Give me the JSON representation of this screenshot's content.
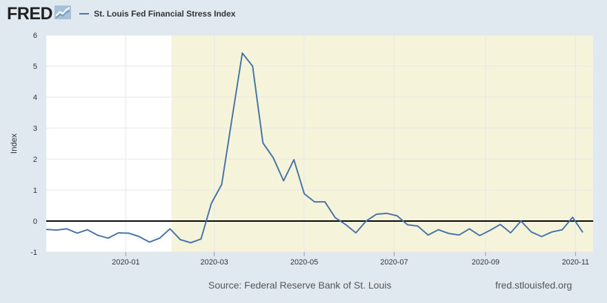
{
  "header": {
    "logo_text": "FRED",
    "logo_icon": "chart-line-icon",
    "legend_label": "St. Louis Fed Financial Stress Index"
  },
  "footer": {
    "source": "Source: Federal Reserve Bank of St. Louis",
    "url": "fred.stlouisfed.org"
  },
  "colors": {
    "background": "#e1e9f0",
    "plot_background": "#ffffff",
    "recession_shade": "#f5f4da",
    "series_line": "#4572a7",
    "zero_line": "#000000",
    "grid": "#e6e6e6"
  },
  "chart_data": {
    "type": "line",
    "title": "",
    "xlabel": "",
    "ylabel": "Index",
    "ylim": [
      -1,
      6
    ],
    "yticks": [
      -1,
      0,
      1,
      2,
      3,
      4,
      5,
      6
    ],
    "xlim": [
      "2019-11-08",
      "2020-11-13"
    ],
    "xticks": [
      {
        "date": "2020-01-01",
        "label": "2020-01"
      },
      {
        "date": "2020-03-01",
        "label": "2020-03"
      },
      {
        "date": "2020-05-01",
        "label": "2020-05"
      },
      {
        "date": "2020-07-01",
        "label": "2020-07"
      },
      {
        "date": "2020-09-01",
        "label": "2020-09"
      },
      {
        "date": "2020-11-01",
        "label": "2020-11"
      }
    ],
    "grid": true,
    "recession": {
      "start": "2020-02-01",
      "end": "2020-11-13"
    },
    "series": [
      {
        "name": "St. Louis Fed Financial Stress Index",
        "points": [
          {
            "x": "2019-11-08",
            "y": -0.27
          },
          {
            "x": "2019-11-15",
            "y": -0.29
          },
          {
            "x": "2019-11-22",
            "y": -0.25
          },
          {
            "x": "2019-11-29",
            "y": -0.39
          },
          {
            "x": "2019-12-06",
            "y": -0.28
          },
          {
            "x": "2019-12-13",
            "y": -0.46
          },
          {
            "x": "2019-12-20",
            "y": -0.55
          },
          {
            "x": "2019-12-27",
            "y": -0.38
          },
          {
            "x": "2020-01-03",
            "y": -0.39
          },
          {
            "x": "2020-01-10",
            "y": -0.5
          },
          {
            "x": "2020-01-17",
            "y": -0.68
          },
          {
            "x": "2020-01-24",
            "y": -0.55
          },
          {
            "x": "2020-01-31",
            "y": -0.25
          },
          {
            "x": "2020-02-07",
            "y": -0.6
          },
          {
            "x": "2020-02-14",
            "y": -0.7
          },
          {
            "x": "2020-02-21",
            "y": -0.58
          },
          {
            "x": "2020-02-28",
            "y": 0.57
          },
          {
            "x": "2020-03-06",
            "y": 1.18
          },
          {
            "x": "2020-03-13",
            "y": 3.3
          },
          {
            "x": "2020-03-20",
            "y": 5.42
          },
          {
            "x": "2020-03-27",
            "y": 5.0
          },
          {
            "x": "2020-04-03",
            "y": 2.52
          },
          {
            "x": "2020-04-10",
            "y": 2.04
          },
          {
            "x": "2020-04-17",
            "y": 1.3
          },
          {
            "x": "2020-04-24",
            "y": 1.98
          },
          {
            "x": "2020-05-01",
            "y": 0.88
          },
          {
            "x": "2020-05-08",
            "y": 0.62
          },
          {
            "x": "2020-05-15",
            "y": 0.62
          },
          {
            "x": "2020-05-22",
            "y": 0.11
          },
          {
            "x": "2020-05-29",
            "y": -0.11
          },
          {
            "x": "2020-06-05",
            "y": -0.38
          },
          {
            "x": "2020-06-12",
            "y": 0.0
          },
          {
            "x": "2020-06-19",
            "y": 0.22
          },
          {
            "x": "2020-06-26",
            "y": 0.25
          },
          {
            "x": "2020-07-03",
            "y": 0.17
          },
          {
            "x": "2020-07-10",
            "y": -0.12
          },
          {
            "x": "2020-07-17",
            "y": -0.16
          },
          {
            "x": "2020-07-24",
            "y": -0.45
          },
          {
            "x": "2020-07-31",
            "y": -0.28
          },
          {
            "x": "2020-08-07",
            "y": -0.4
          },
          {
            "x": "2020-08-14",
            "y": -0.45
          },
          {
            "x": "2020-08-21",
            "y": -0.25
          },
          {
            "x": "2020-08-28",
            "y": -0.47
          },
          {
            "x": "2020-09-04",
            "y": -0.3
          },
          {
            "x": "2020-09-11",
            "y": -0.11
          },
          {
            "x": "2020-09-18",
            "y": -0.38
          },
          {
            "x": "2020-09-25",
            "y": 0.0
          },
          {
            "x": "2020-10-02",
            "y": -0.35
          },
          {
            "x": "2020-10-09",
            "y": -0.5
          },
          {
            "x": "2020-10-16",
            "y": -0.35
          },
          {
            "x": "2020-10-23",
            "y": -0.28
          },
          {
            "x": "2020-10-30",
            "y": 0.12
          },
          {
            "x": "2020-11-06",
            "y": -0.37
          }
        ]
      }
    ]
  }
}
